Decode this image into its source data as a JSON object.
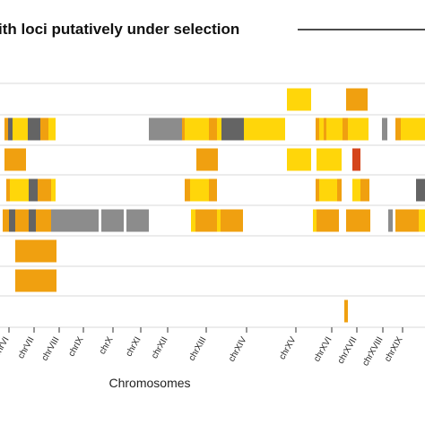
{
  "chart_data": {
    "type": "heatmap",
    "title": "ith loci putatively under selection",
    "xlabel": "Chromosomes",
    "ylabel": "",
    "grid": true,
    "legend": "none",
    "colors": {
      "yellow": "#FFD60A",
      "orange": "#F0A010",
      "gray": "#8C8C8C",
      "darkgray": "#646464",
      "red": "#D5451B",
      "grid": "#D8D8D8"
    },
    "categories": [
      "chrVI",
      "chrVII",
      "chrVIII",
      "chrIX",
      "chrX",
      "chrXI",
      "chrXII",
      "chrXIII",
      "chrXIV",
      "chrXV",
      "chrXVI",
      "chrXVII",
      "chrXVIII",
      "chrXIX"
    ],
    "rows": [
      {
        "segments": [
          {
            "start": 320,
            "end": 347,
            "color": "yellow"
          },
          {
            "start": 386,
            "end": 410,
            "color": "orange"
          }
        ]
      },
      {
        "segments": [
          {
            "start": 5,
            "end": 9,
            "color": "orange"
          },
          {
            "start": 9,
            "end": 14,
            "color": "darkgray"
          },
          {
            "start": 14,
            "end": 31,
            "color": "yellow"
          },
          {
            "start": 31,
            "end": 45,
            "color": "darkgray"
          },
          {
            "start": 45,
            "end": 54,
            "color": "orange"
          },
          {
            "start": 54,
            "end": 62,
            "color": "yellow"
          },
          {
            "start": 166,
            "end": 203,
            "color": "gray"
          },
          {
            "start": 203,
            "end": 206,
            "color": "orange"
          },
          {
            "start": 206,
            "end": 233,
            "color": "yellow"
          },
          {
            "start": 233,
            "end": 242,
            "color": "orange"
          },
          {
            "start": 242,
            "end": 247,
            "color": "yellow"
          },
          {
            "start": 247,
            "end": 272,
            "color": "darkgray"
          },
          {
            "start": 272,
            "end": 318,
            "color": "yellow"
          },
          {
            "start": 352,
            "end": 356,
            "color": "orange"
          },
          {
            "start": 356,
            "end": 361,
            "color": "yellow"
          },
          {
            "start": 361,
            "end": 364,
            "color": "orange"
          },
          {
            "start": 364,
            "end": 382,
            "color": "yellow"
          },
          {
            "start": 382,
            "end": 388,
            "color": "orange"
          },
          {
            "start": 388,
            "end": 411,
            "color": "yellow"
          },
          {
            "start": 426,
            "end": 432,
            "color": "gray"
          },
          {
            "start": 441,
            "end": 447,
            "color": "orange"
          },
          {
            "start": 447,
            "end": 474,
            "color": "yellow"
          }
        ]
      },
      {
        "segments": [
          {
            "start": 5,
            "end": 29,
            "color": "orange"
          },
          {
            "start": 219,
            "end": 243,
            "color": "orange"
          },
          {
            "start": 320,
            "end": 347,
            "color": "yellow"
          },
          {
            "start": 353,
            "end": 381,
            "color": "yellow"
          },
          {
            "start": 393,
            "end": 402,
            "color": "red"
          }
        ]
      },
      {
        "segments": [
          {
            "start": 7,
            "end": 11,
            "color": "orange"
          },
          {
            "start": 11,
            "end": 32,
            "color": "yellow"
          },
          {
            "start": 32,
            "end": 42,
            "color": "darkgray"
          },
          {
            "start": 42,
            "end": 57,
            "color": "orange"
          },
          {
            "start": 57,
            "end": 62,
            "color": "yellow"
          },
          {
            "start": 206,
            "end": 212,
            "color": "orange"
          },
          {
            "start": 212,
            "end": 233,
            "color": "yellow"
          },
          {
            "start": 233,
            "end": 242,
            "color": "orange"
          },
          {
            "start": 352,
            "end": 356,
            "color": "orange"
          },
          {
            "start": 356,
            "end": 376,
            "color": "yellow"
          },
          {
            "start": 376,
            "end": 381,
            "color": "orange"
          },
          {
            "start": 393,
            "end": 402,
            "color": "yellow"
          },
          {
            "start": 402,
            "end": 412,
            "color": "orange"
          },
          {
            "start": 464,
            "end": 474,
            "color": "darkgray"
          }
        ]
      },
      {
        "segments": [
          {
            "start": 3,
            "end": 10,
            "color": "orange"
          },
          {
            "start": 10,
            "end": 17,
            "color": "darkgray"
          },
          {
            "start": 17,
            "end": 32,
            "color": "orange"
          },
          {
            "start": 32,
            "end": 40,
            "color": "darkgray"
          },
          {
            "start": 40,
            "end": 57,
            "color": "orange"
          },
          {
            "start": 57,
            "end": 63,
            "color": "gray"
          },
          {
            "start": 63,
            "end": 110,
            "color": "gray"
          },
          {
            "start": 113,
            "end": 138,
            "color": "gray"
          },
          {
            "start": 141,
            "end": 166,
            "color": "gray"
          },
          {
            "start": 213,
            "end": 218,
            "color": "yellow"
          },
          {
            "start": 218,
            "end": 242,
            "color": "orange"
          },
          {
            "start": 242,
            "end": 246,
            "color": "yellow"
          },
          {
            "start": 246,
            "end": 271,
            "color": "orange"
          },
          {
            "start": 349,
            "end": 353,
            "color": "yellow"
          },
          {
            "start": 353,
            "end": 378,
            "color": "orange"
          },
          {
            "start": 386,
            "end": 413,
            "color": "orange"
          },
          {
            "start": 433,
            "end": 438,
            "color": "gray"
          },
          {
            "start": 441,
            "end": 467,
            "color": "orange"
          },
          {
            "start": 467,
            "end": 474,
            "color": "yellow"
          }
        ]
      },
      {
        "segments": [
          {
            "start": 17,
            "end": 63,
            "color": "orange"
          }
        ]
      },
      {
        "segments": [
          {
            "start": 17,
            "end": 63,
            "color": "orange"
          }
        ]
      },
      {
        "segments": [
          {
            "start": 384,
            "end": 388,
            "color": "orange"
          }
        ]
      }
    ]
  }
}
